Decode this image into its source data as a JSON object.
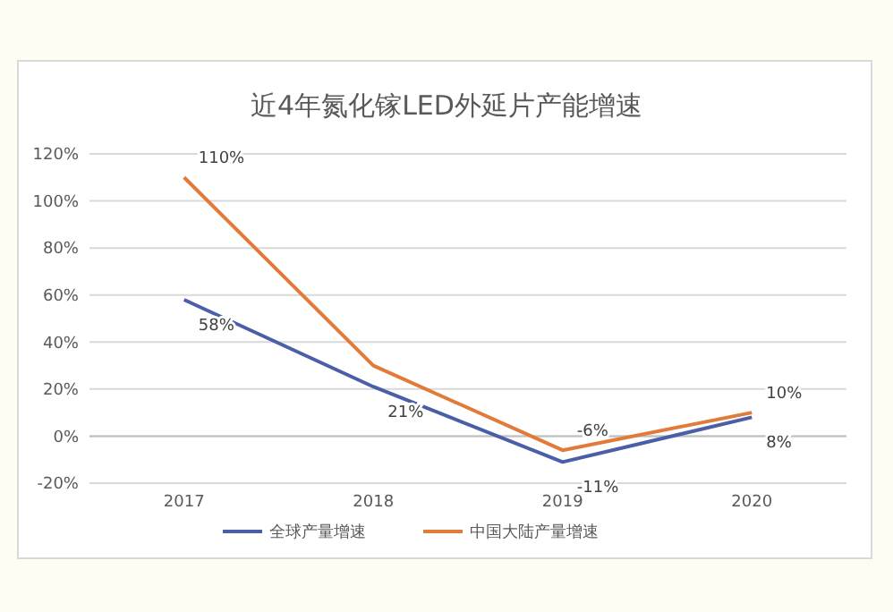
{
  "chart_data": {
    "type": "line",
    "title": "近4年氮化镓LED外延片产能增速",
    "categories": [
      "2017",
      "2018",
      "2019",
      "2020"
    ],
    "series": [
      {
        "name": "全球产量增速",
        "color": "#4a5fa8",
        "values": [
          58,
          21,
          -11,
          8
        ],
        "value_labels": [
          "58%",
          "21%",
          "-11%",
          "8%"
        ]
      },
      {
        "name": "中国大陆产量增速",
        "color": "#e07b39",
        "values": [
          110,
          30,
          -6,
          10
        ],
        "value_labels": [
          "110%",
          null,
          "-6%",
          "10%"
        ]
      }
    ],
    "ylim": [
      -20,
      120
    ],
    "yticks": [
      {
        "value": -20,
        "label": "-20%"
      },
      {
        "value": 0,
        "label": "0%"
      },
      {
        "value": 20,
        "label": "20%"
      },
      {
        "value": 40,
        "label": "40%"
      },
      {
        "value": 60,
        "label": "60%"
      },
      {
        "value": 80,
        "label": "80%"
      },
      {
        "value": 100,
        "label": "100%"
      },
      {
        "value": 120,
        "label": "120%"
      }
    ],
    "grid": "y",
    "legend": "bottom",
    "marker": "none",
    "line_style": "solid"
  }
}
